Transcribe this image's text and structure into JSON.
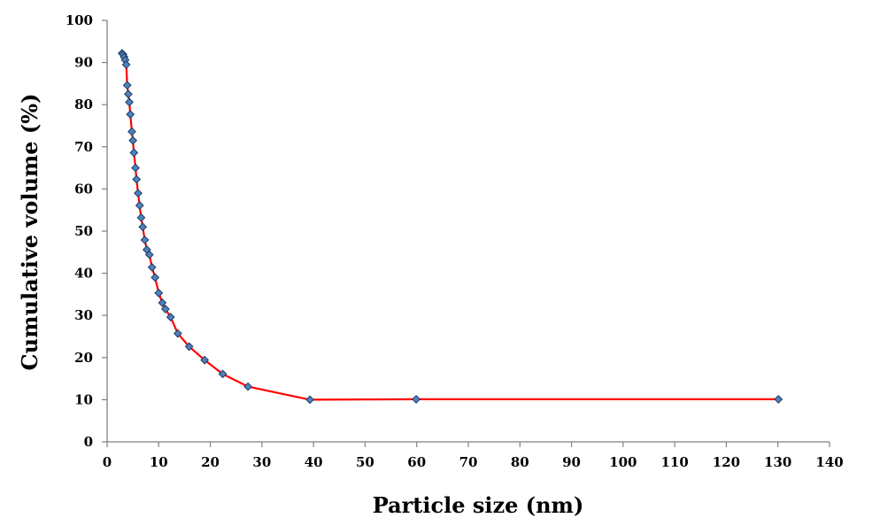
{
  "chart_data": {
    "type": "line",
    "title": "",
    "xlabel": "Particle size (nm)",
    "ylabel": "Cumulative volume (%)",
    "xlim": [
      0,
      140
    ],
    "ylim": [
      0,
      100
    ],
    "xticks": [
      0,
      10,
      20,
      30,
      40,
      50,
      60,
      70,
      80,
      90,
      100,
      110,
      120,
      130,
      140
    ],
    "yticks": [
      0,
      10,
      20,
      30,
      40,
      50,
      60,
      70,
      80,
      90,
      100
    ],
    "grid": false,
    "legend": "none",
    "line_color": "#ff0000",
    "marker_color": "#4f81bd",
    "marker_edge_color": "#1f3b63",
    "marker": "diamond",
    "series": [
      {
        "x": [
          2.9,
          3.1,
          3.3,
          3.5,
          3.7,
          3.9,
          4.1,
          4.3,
          4.5,
          4.8,
          5.0,
          5.2,
          5.5,
          5.7,
          6.0,
          6.3,
          6.6,
          6.9,
          7.3,
          7.7,
          8.2,
          8.7,
          9.3,
          10.0,
          10.7,
          11.3,
          12.3,
          13.7,
          15.9,
          18.9,
          22.4,
          27.3,
          39.3,
          59.9,
          130.1
        ],
        "y": [
          92.2,
          91.9,
          91.3,
          90.6,
          89.5,
          84.6,
          82.5,
          80.6,
          77.7,
          73.6,
          71.5,
          68.6,
          65.0,
          62.3,
          59.0,
          56.1,
          53.2,
          51.0,
          47.9,
          45.6,
          44.4,
          41.4,
          39.0,
          35.3,
          33.0,
          31.5,
          29.6,
          25.7,
          22.6,
          19.4,
          16.1,
          13.1,
          10.0,
          10.1,
          10.1
        ]
      }
    ]
  }
}
